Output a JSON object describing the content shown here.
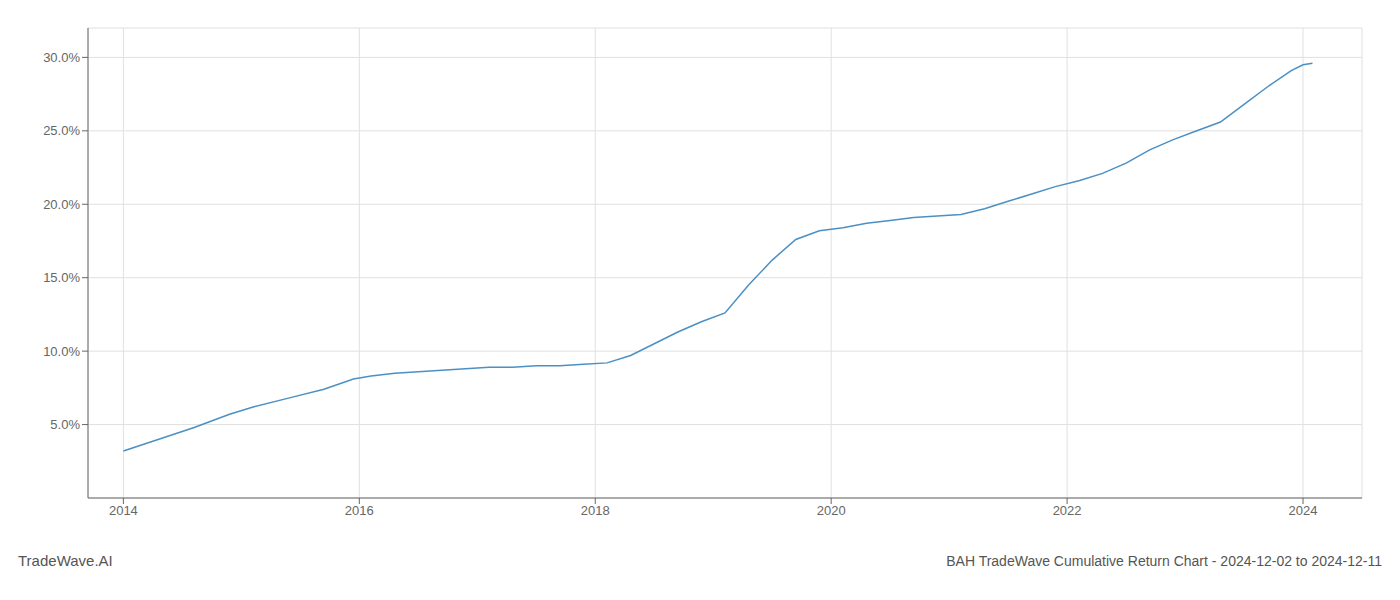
{
  "chart_data": {
    "type": "line",
    "title": "BAH TradeWave Cumulative Return Chart - 2024-12-02 to 2024-12-11",
    "watermark": "TradeWave.AI",
    "x": [
      2014.0,
      2014.3,
      2014.6,
      2014.9,
      2015.1,
      2015.4,
      2015.7,
      2015.95,
      2016.1,
      2016.3,
      2016.5,
      2016.7,
      2016.9,
      2017.1,
      2017.3,
      2017.5,
      2017.7,
      2017.9,
      2018.1,
      2018.3,
      2018.5,
      2018.7,
      2018.9,
      2019.1,
      2019.3,
      2019.5,
      2019.7,
      2019.9,
      2020.1,
      2020.3,
      2020.5,
      2020.7,
      2020.9,
      2021.1,
      2021.3,
      2021.5,
      2021.7,
      2021.9,
      2022.1,
      2022.3,
      2022.5,
      2022.7,
      2022.9,
      2023.1,
      2023.3,
      2023.5,
      2023.7,
      2023.9,
      2024.0,
      2024.08
    ],
    "values": [
      0.032,
      0.04,
      0.048,
      0.057,
      0.062,
      0.068,
      0.074,
      0.081,
      0.083,
      0.085,
      0.086,
      0.087,
      0.088,
      0.089,
      0.089,
      0.09,
      0.09,
      0.091,
      0.092,
      0.097,
      0.105,
      0.113,
      0.12,
      0.126,
      0.145,
      0.162,
      0.176,
      0.182,
      0.184,
      0.187,
      0.189,
      0.191,
      0.192,
      0.193,
      0.197,
      0.202,
      0.207,
      0.212,
      0.216,
      0.221,
      0.228,
      0.237,
      0.244,
      0.25,
      0.256,
      0.268,
      0.28,
      0.291,
      0.295,
      0.296
    ],
    "color": "#4a90c4",
    "xlim": [
      2013.7,
      2024.5
    ],
    "ylim": [
      0.0,
      0.32
    ],
    "xticks": [
      2014,
      2016,
      2018,
      2020,
      2022,
      2024
    ],
    "yticks": [
      {
        "value": 0.05,
        "label": "5.0%"
      },
      {
        "value": 0.1,
        "label": "10.0%"
      },
      {
        "value": 0.15,
        "label": "15.0%"
      },
      {
        "value": 0.2,
        "label": "20.0%"
      },
      {
        "value": 0.25,
        "label": "25.0%"
      },
      {
        "value": 0.3,
        "label": "30.0%"
      }
    ],
    "grid": true
  }
}
